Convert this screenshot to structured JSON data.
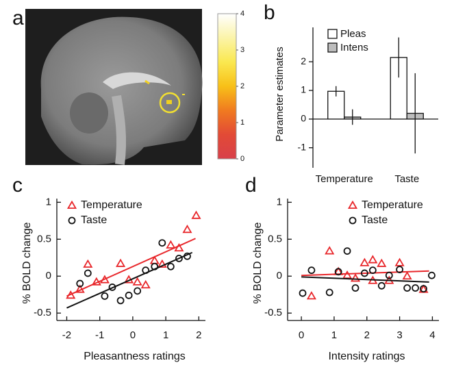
{
  "chart_data": [
    {
      "type": "colorbar",
      "label": "a",
      "ylim": [
        0,
        4
      ],
      "yticks": [
        0,
        1,
        2,
        3,
        4
      ],
      "colors": [
        "#d8404a",
        "#e24a36",
        "#f07a20",
        "#f8c018",
        "#fae850",
        "#fbf4a8",
        "#ffffff"
      ]
    },
    {
      "type": "bar",
      "label": "b",
      "ylabel": "Parameter estimates",
      "categories": [
        "Temperature",
        "Taste"
      ],
      "series": [
        {
          "name": "Pleas",
          "color": "#ffffff",
          "values": [
            0.97,
            2.15
          ],
          "errors": [
            0.18,
            0.7
          ]
        },
        {
          "name": "Intens",
          "color": "#bdbdbd",
          "values": [
            0.07,
            0.2
          ],
          "errors": [
            0.27,
            1.4
          ]
        }
      ],
      "ylim": [
        -1.7,
        3.2
      ],
      "yticks": [
        -1,
        0,
        1,
        2
      ],
      "legend": "upper left"
    },
    {
      "type": "scatter",
      "label": "c",
      "xlabel": "Pleasantness ratings",
      "ylabel": "% BOLD change",
      "xlim": [
        -2.3,
        2.2
      ],
      "xticks": [
        -2,
        -1,
        0,
        1,
        2
      ],
      "ylim": [
        -0.6,
        1.05
      ],
      "yticks": [
        -0.5,
        0,
        0.5,
        1
      ],
      "legend": "upper left",
      "series": [
        {
          "name": "Temperature",
          "color": "#e8262a",
          "marker": "triangle",
          "x": [
            -1.88,
            -1.6,
            -1.36,
            -1.1,
            -0.85,
            -0.37,
            -0.12,
            0.14,
            0.39,
            0.66,
            0.89,
            1.15,
            1.4,
            1.65,
            1.92
          ],
          "values": [
            -0.26,
            -0.18,
            0.16,
            -0.08,
            -0.05,
            0.17,
            -0.05,
            -0.08,
            -0.12,
            0.21,
            0.16,
            0.42,
            0.38,
            0.63,
            0.82
          ],
          "fit": {
            "x": [
              -2,
              1.9
            ],
            "values": [
              -0.27,
              0.51
            ]
          }
        },
        {
          "name": "Taste",
          "color": "#111111",
          "marker": "circle",
          "x": [
            -1.6,
            -1.36,
            -0.85,
            -0.62,
            -0.37,
            -0.12,
            0.14,
            0.39,
            0.66,
            0.89,
            1.15,
            1.4,
            1.65
          ],
          "values": [
            -0.1,
            0.04,
            -0.27,
            -0.15,
            -0.33,
            -0.26,
            -0.2,
            0.08,
            0.13,
            0.45,
            0.13,
            0.24,
            0.27
          ],
          "fit": {
            "x": [
              -2,
              1.8
            ],
            "values": [
              -0.43,
              0.32
            ]
          }
        }
      ]
    },
    {
      "type": "scatter",
      "label": "d",
      "xlabel": "Intensity ratings",
      "ylabel": "% BOLD change",
      "xlim": [
        -0.42,
        4.2
      ],
      "xticks": [
        0,
        1,
        2,
        3,
        4
      ],
      "ylim": [
        -0.6,
        1.05
      ],
      "yticks": [
        -0.5,
        0,
        0.5,
        1
      ],
      "legend": "upper right",
      "series": [
        {
          "name": "Temperature",
          "color": "#e8262a",
          "marker": "triangle",
          "x": [
            0.31,
            0.86,
            1.13,
            1.4,
            1.65,
            1.93,
            2.18,
            2.18,
            2.45,
            2.68,
            3.0,
            3.23,
            3.73
          ],
          "values": [
            -0.27,
            0.34,
            0.06,
            0.01,
            -0.03,
            0.18,
            -0.06,
            0.22,
            0.17,
            -0.06,
            0.18,
            0,
            -0.18
          ],
          "fit": {
            "x": [
              0,
              3.9
            ],
            "values": [
              0.01,
              0.07
            ]
          }
        },
        {
          "name": "Taste",
          "color": "#111111",
          "marker": "circle",
          "x": [
            0.04,
            0.31,
            0.86,
            1.13,
            1.4,
            1.65,
            1.93,
            2.18,
            2.45,
            2.68,
            3.0,
            3.23,
            3.48,
            3.73,
            3.98
          ],
          "values": [
            -0.23,
            0.08,
            -0.22,
            0.06,
            0.34,
            -0.16,
            0.04,
            0.08,
            -0.13,
            0.01,
            0.09,
            -0.16,
            -0.16,
            -0.17,
            0.01
          ],
          "fit": {
            "x": [
              0,
              3.9
            ],
            "values": [
              -0.01,
              -0.08
            ]
          }
        }
      ]
    }
  ]
}
